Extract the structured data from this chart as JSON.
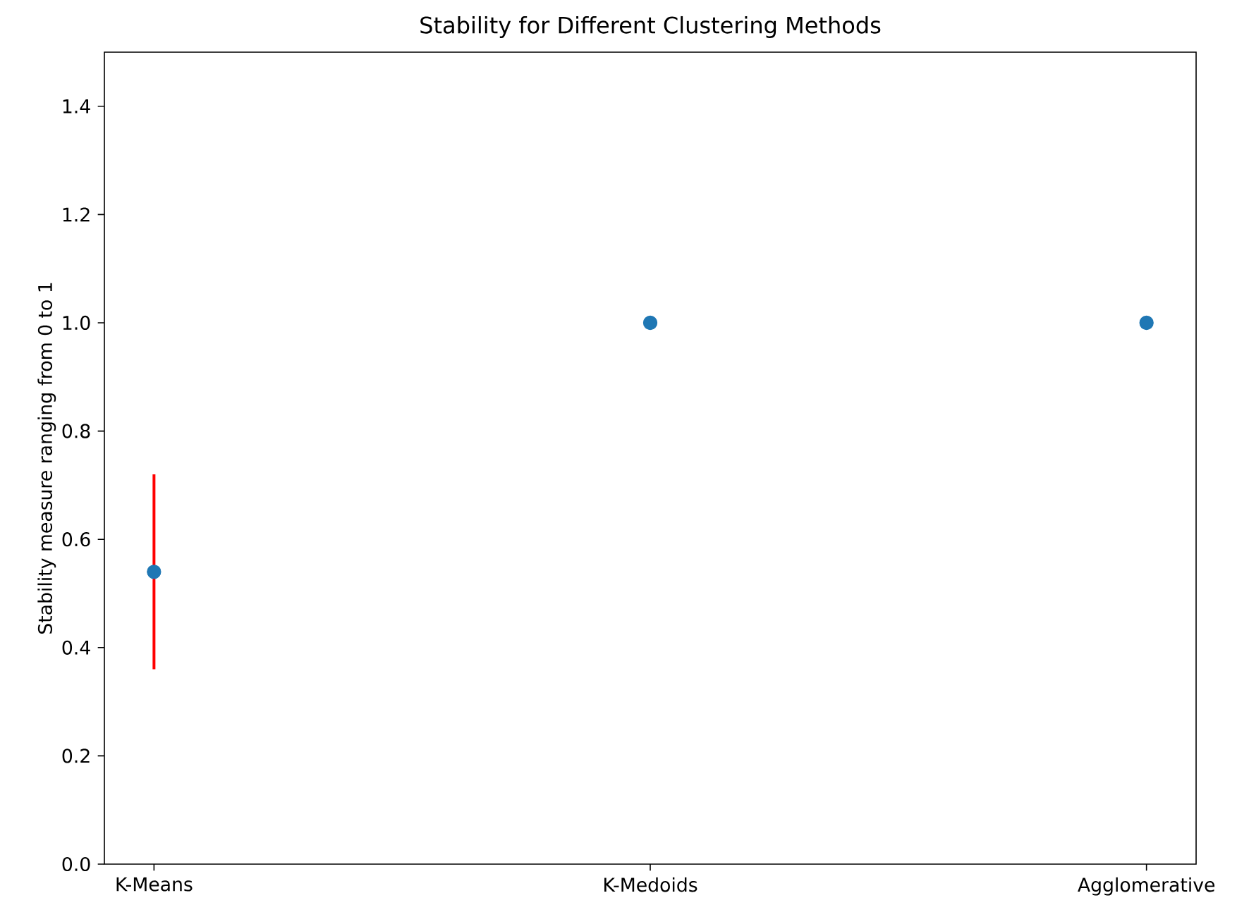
{
  "chart_data": {
    "type": "scatter",
    "title": "Stability for Different Clustering Methods",
    "ylabel": "Stability measure ranging from 0 to 1",
    "categories": [
      "K-Means",
      "K-Medoids",
      "Agglomerative"
    ],
    "series": [
      {
        "color": "#1f77b4",
        "values": [
          0.54,
          1.0,
          1.0
        ],
        "errors": [
          0.18,
          null,
          null
        ]
      }
    ],
    "ylim": [
      0,
      1.5
    ],
    "yticks": [
      {
        "value": 0,
        "label": "0.0"
      },
      0.2,
      0.4,
      0.6,
      0.8,
      {
        "value": 1.0,
        "label": "1.0"
      },
      1.2,
      1.4
    ],
    "marker": "circle"
  }
}
